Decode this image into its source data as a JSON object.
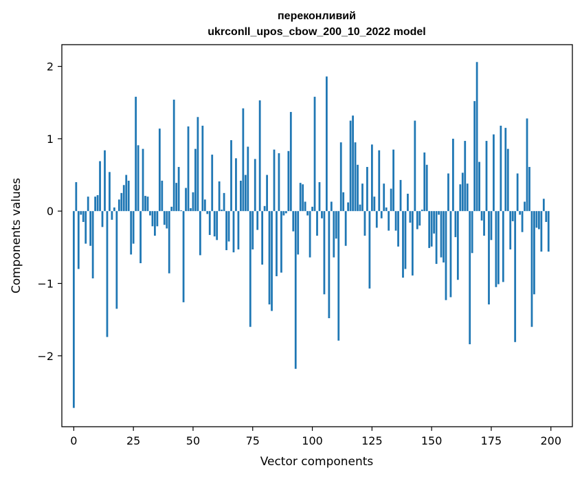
{
  "chart_data": {
    "type": "bar",
    "title": "переконливий",
    "subtitle": "ukrconll_upos_cbow_200_10_2022 model",
    "xlabel": "Vector components",
    "ylabel": "Components values",
    "xlim": [
      -5,
      209
    ],
    "ylim": [
      -2.98,
      2.3
    ],
    "xticks": [
      0,
      25,
      50,
      75,
      100,
      125,
      150,
      175,
      200
    ],
    "yticks": [
      -2,
      -1,
      0,
      1,
      2
    ],
    "ytick_labels": [
      "−2",
      "−1",
      "0",
      "1",
      "2"
    ],
    "grid": false,
    "legend": "none",
    "bar_color": "#1f77b4",
    "series": [
      {
        "values": [
          -2.72,
          0.4,
          -0.8,
          -0.05,
          -0.15,
          -0.45,
          0.2,
          -0.48,
          -0.93,
          0.2,
          0.22,
          0.69,
          -0.22,
          0.84,
          -1.74,
          0.54,
          -0.12,
          0.05,
          -1.35,
          0.16,
          0.25,
          0.36,
          0.5,
          0.42,
          -0.6,
          -0.45,
          1.58,
          0.91,
          -0.72,
          0.86,
          0.21,
          0.2,
          -0.06,
          -0.21,
          -0.34,
          -0.21,
          1.14,
          0.42,
          -0.19,
          -0.24,
          -0.86,
          0.06,
          1.54,
          0.39,
          0.61,
          0.01,
          -1.26,
          0.32,
          1.17,
          0.04,
          0.26,
          0.86,
          1.3,
          -0.61,
          1.18,
          0.16,
          -0.04,
          -0.33,
          0.78,
          -0.35,
          -0.4,
          0.41,
          0.02,
          0.25,
          -0.54,
          -0.42,
          0.98,
          -0.57,
          0.73,
          -0.53,
          0.42,
          1.42,
          0.5,
          0.89,
          -1.6,
          -0.53,
          0.72,
          -0.26,
          1.53,
          -0.74,
          0.07,
          0.5,
          -1.29,
          -1.38,
          0.85,
          -0.9,
          0.8,
          -0.85,
          -0.06,
          -0.03,
          0.83,
          1.37,
          -0.28,
          -2.18,
          -0.6,
          0.39,
          0.37,
          0.13,
          -0.06,
          -0.64,
          0.06,
          1.58,
          -0.34,
          0.4,
          -0.1,
          -1.15,
          1.86,
          -1.48,
          0.13,
          -0.64,
          -0.38,
          -1.79,
          0.95,
          0.26,
          -0.48,
          0.12,
          1.25,
          1.32,
          0.95,
          0.64,
          0.09,
          0.38,
          -0.34,
          0.61,
          -1.07,
          0.92,
          0.2,
          -0.23,
          0.84,
          -0.1,
          0.38,
          0.05,
          -0.27,
          0.31,
          0.85,
          -0.27,
          -0.49,
          0.43,
          -0.92,
          -0.8,
          0.24,
          -0.16,
          -0.89,
          1.25,
          -0.25,
          -0.2,
          0.02,
          0.81,
          0.64,
          -0.51,
          -0.49,
          -0.31,
          -0.73,
          -0.05,
          -0.64,
          -0.71,
          -1.23,
          0.52,
          -1.19,
          1.0,
          -0.36,
          -0.95,
          0.37,
          0.53,
          0.97,
          0.38,
          -1.84,
          -0.58,
          1.52,
          2.06,
          0.68,
          -0.13,
          -0.34,
          0.97,
          -1.29,
          -0.4,
          1.06,
          -1.05,
          -1.01,
          1.18,
          -0.98,
          1.15,
          0.86,
          -0.53,
          -0.14,
          -1.81,
          0.52,
          -0.05,
          -0.29,
          0.13,
          1.28,
          0.61,
          -1.6,
          -1.15,
          -0.23,
          -0.25,
          -0.56,
          0.17,
          -0.15,
          -0.56
        ]
      }
    ]
  }
}
